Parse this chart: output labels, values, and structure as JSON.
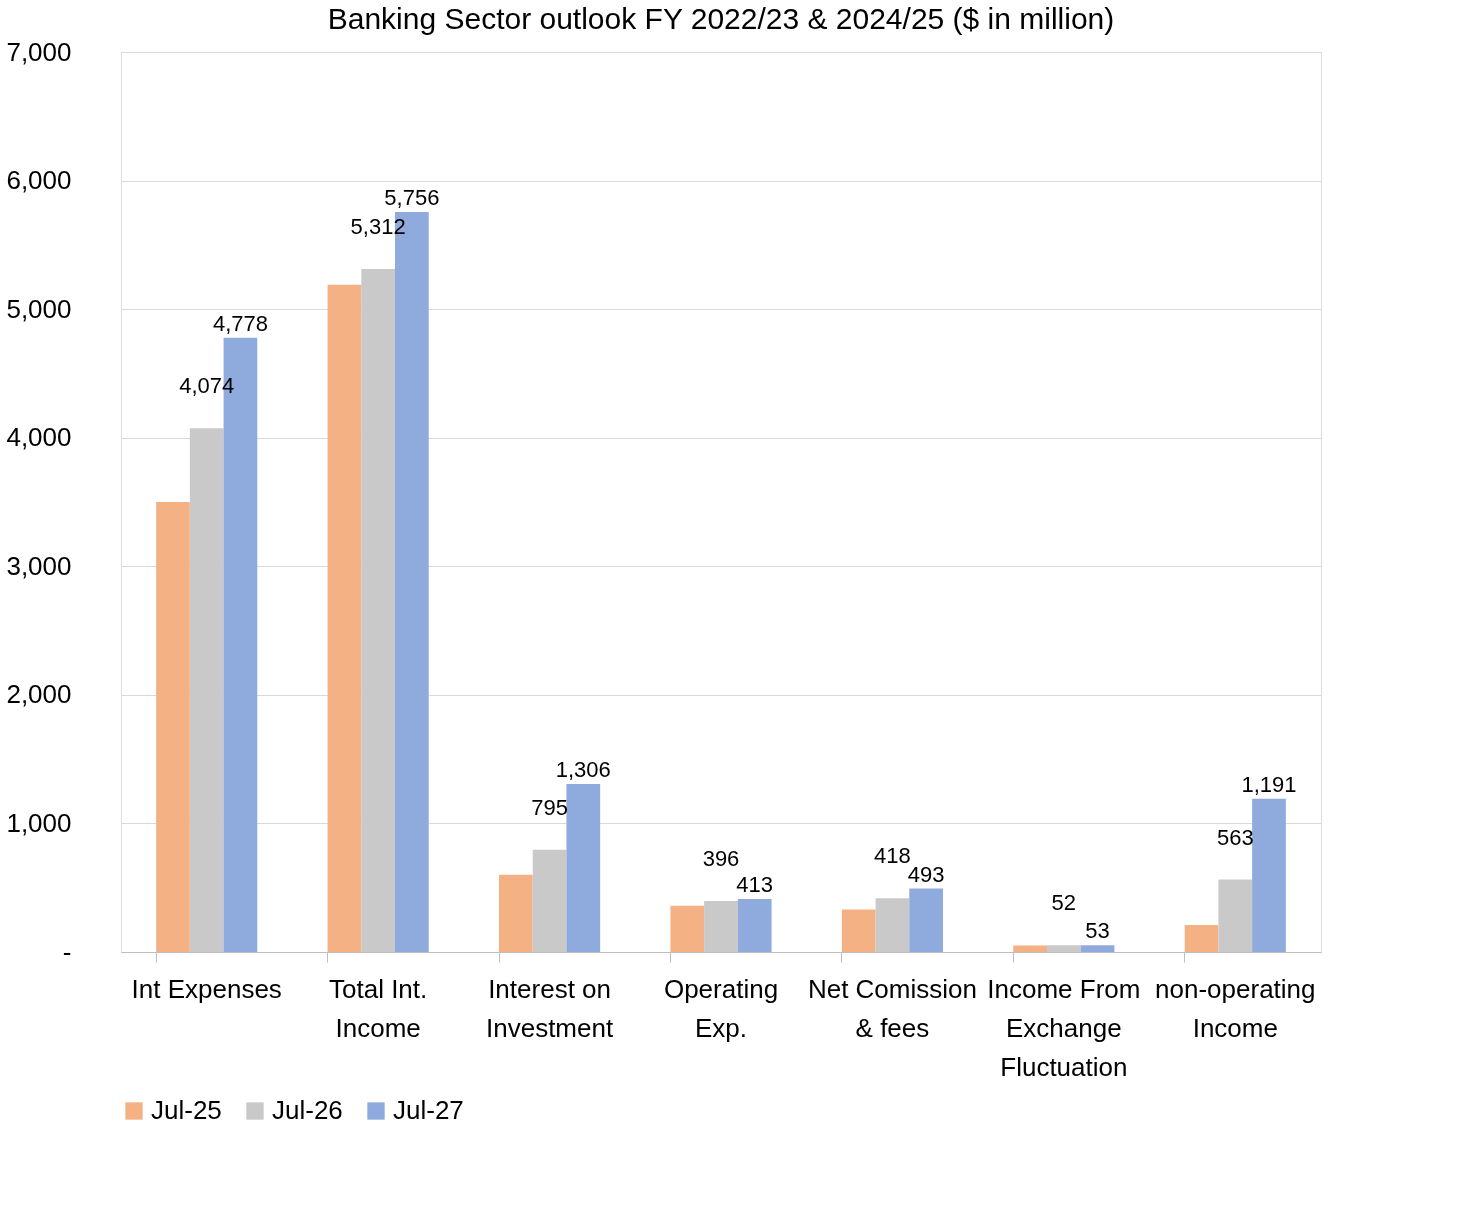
{
  "chart_data": {
    "type": "bar",
    "title": "Banking Sector outlook FY 2022/23 & 2024/25 ($ in million)",
    "categories": [
      "Int Expenses",
      "Total Int. Income",
      "Interest on Investment",
      "Operating Exp.",
      "Net Comission & fees",
      "Income From Exchange Fluctuation",
      "non-operating Income"
    ],
    "series": [
      {
        "name": "Jul-25",
        "color": "#f4b183",
        "values": [
          3500,
          5190,
          600,
          360,
          330,
          50,
          210
        ],
        "value_labels": [
          null,
          null,
          null,
          null,
          null,
          null,
          null
        ]
      },
      {
        "name": "Jul-26",
        "color": "#c9c9c9",
        "values": [
          4074,
          5312,
          795,
          396,
          418,
          52,
          563
        ],
        "value_labels": [
          "4,074",
          "5,312",
          "795",
          "396",
          "418",
          "52",
          "563"
        ]
      },
      {
        "name": "Jul-27",
        "color": "#8faadc",
        "values": [
          4778,
          5756,
          1306,
          413,
          493,
          53,
          1191
        ],
        "value_labels": [
          "4,778",
          "5,756",
          "1,306",
          "413",
          "493",
          "53",
          "1,191"
        ]
      }
    ],
    "ylim": [
      0,
      7000
    ],
    "yticks": [
      {
        "value": 0,
        "label": "-"
      },
      {
        "value": 1000,
        "label": "1,000"
      },
      {
        "value": 2000,
        "label": "2,000"
      },
      {
        "value": 3000,
        "label": "3,000"
      },
      {
        "value": 4000,
        "label": "4,000"
      },
      {
        "value": 5000,
        "label": "5,000"
      },
      {
        "value": 6000,
        "label": "6,000"
      },
      {
        "value": 7000,
        "label": "7,000"
      }
    ],
    "grid": "y",
    "legend": "bottom"
  }
}
